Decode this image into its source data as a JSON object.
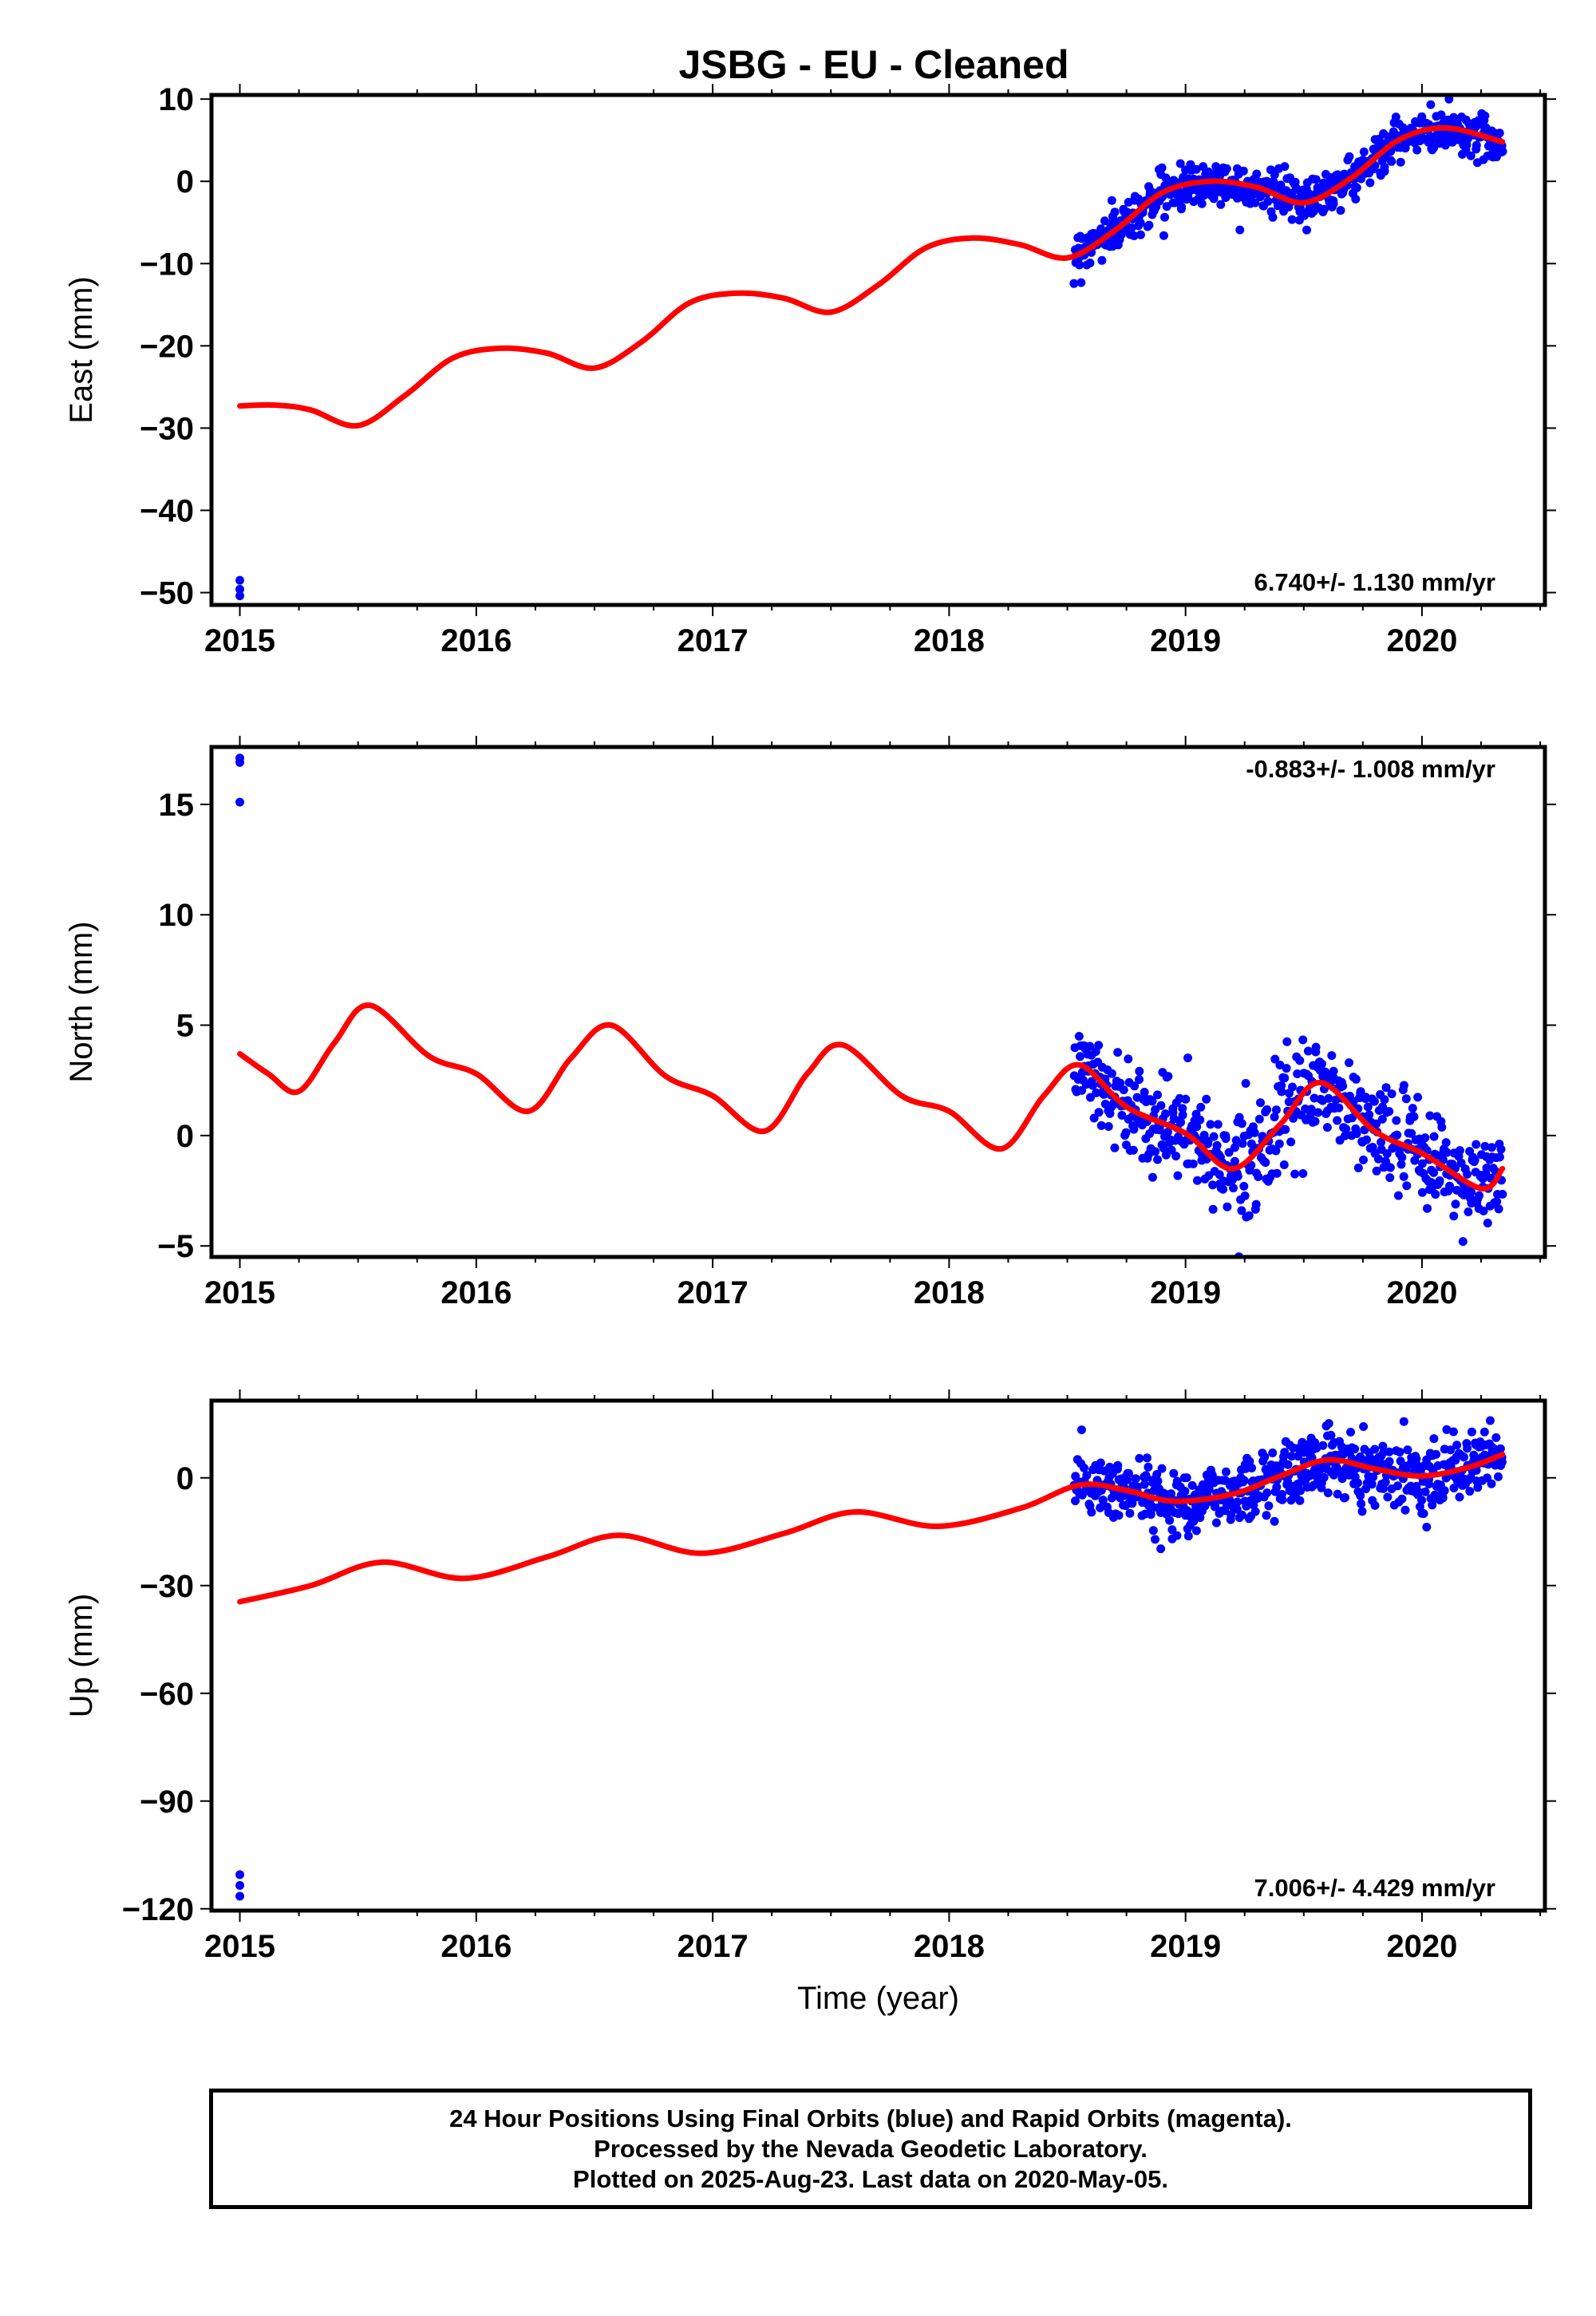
{
  "chart_data": [
    {
      "type": "scatter",
      "title": "JSBG  - EU - Cleaned",
      "xlabel": "",
      "ylabel": "East (mm)",
      "xlim": [
        2014.88,
        2020.52
      ],
      "ylim": [
        -51.5,
        10.5
      ],
      "xticks": [
        2015,
        2016,
        2017,
        2018,
        2019,
        2020
      ],
      "yticks": [
        10,
        0,
        -10,
        -20,
        -30,
        -40,
        -50
      ],
      "rate_annotation": "6.740+/- 1.130 mm/yr",
      "rate_position": "bottom-right",
      "series": [
        {
          "type": "scatter",
          "color": "#0000ff",
          "isolated_points": [
            [
              2015.0,
              -48.5
            ],
            [
              2015.0,
              -49.6
            ],
            [
              2015.0,
              -50.4
            ]
          ],
          "dense_points": {
            "x_range": [
              2018.53,
              2020.34
            ],
            "count": 620,
            "scatter_sd": 1.3
          }
        },
        {
          "type": "line",
          "color": "#ff0000",
          "x": [
            2015.0,
            2015.15,
            2015.3,
            2015.5,
            2015.7,
            2015.9,
            2016.1,
            2016.3,
            2016.5,
            2016.7,
            2016.9,
            2017.1,
            2017.3,
            2017.5,
            2017.7,
            2017.9,
            2018.1,
            2018.3,
            2018.5,
            2018.7,
            2018.9,
            2019.1,
            2019.3,
            2019.5,
            2019.7,
            2019.9,
            2020.1,
            2020.34
          ],
          "y": [
            -27.3,
            -27.2,
            -27.8,
            -29.7,
            -26.0,
            -21.5,
            -20.3,
            -20.9,
            -22.7,
            -19.5,
            -14.8,
            -13.6,
            -14.2,
            -15.9,
            -12.6,
            -8.1,
            -6.9,
            -7.7,
            -9.3,
            -6.0,
            -1.4,
            0.0,
            -0.7,
            -2.6,
            0.4,
            5.0,
            6.5,
            4.8
          ]
        }
      ]
    },
    {
      "type": "scatter",
      "title": "",
      "xlabel": "",
      "ylabel": "North (mm)",
      "xlim": [
        2014.88,
        2020.52
      ],
      "ylim": [
        -5.5,
        17.6
      ],
      "xticks": [
        2015,
        2016,
        2017,
        2018,
        2019,
        2020
      ],
      "yticks": [
        15,
        10,
        5,
        0,
        -5
      ],
      "rate_annotation": "-0.883+/- 1.008 mm/yr",
      "rate_position": "top-right",
      "series": [
        {
          "type": "scatter",
          "color": "#0000ff",
          "isolated_points": [
            [
              2015.0,
              17.1
            ],
            [
              2015.0,
              16.9
            ],
            [
              2015.0,
              15.1
            ]
          ],
          "dense_points": {
            "x_range": [
              2018.53,
              2020.34
            ],
            "count": 560,
            "scatter_sd": 1.1
          }
        },
        {
          "type": "line",
          "color": "#ff0000",
          "x": [
            2015.0,
            2015.12,
            2015.25,
            2015.4,
            2015.55,
            2015.8,
            2016.0,
            2016.22,
            2016.4,
            2016.57,
            2016.8,
            2017.0,
            2017.22,
            2017.4,
            2017.55,
            2017.8,
            2018.0,
            2018.22,
            2018.4,
            2018.55,
            2018.75,
            2019.0,
            2019.2,
            2019.4,
            2019.57,
            2019.8,
            2020.0,
            2020.25,
            2020.34
          ],
          "y": [
            3.7,
            2.8,
            2.0,
            4.2,
            5.9,
            3.6,
            2.8,
            1.1,
            3.5,
            5.0,
            2.7,
            1.8,
            0.2,
            2.8,
            4.1,
            1.8,
            1.1,
            -0.6,
            1.8,
            3.2,
            1.3,
            0.1,
            -1.5,
            0.5,
            2.4,
            0.2,
            -0.8,
            -2.4,
            -1.5
          ]
        }
      ]
    },
    {
      "type": "scatter",
      "title": "",
      "xlabel": "Time (year)",
      "ylabel": "Up (mm)",
      "xlim": [
        2014.88,
        2020.52
      ],
      "ylim": [
        -120.5,
        21.5
      ],
      "xticks": [
        2015,
        2016,
        2017,
        2018,
        2019,
        2020
      ],
      "yticks": [
        0,
        -30,
        -60,
        -90,
        -120
      ],
      "rate_annotation": "7.006+/- 4.429 mm/yr",
      "rate_position": "bottom-right",
      "series": [
        {
          "type": "scatter",
          "color": "#0000ff",
          "isolated_points": [
            [
              2015.0,
              -110.5
            ],
            [
              2015.0,
              -113.5
            ],
            [
              2015.0,
              -116.5
            ]
          ],
          "dense_points": {
            "x_range": [
              2018.53,
              2020.34
            ],
            "count": 620,
            "scatter_sd": 4.5
          }
        },
        {
          "type": "line",
          "color": "#ff0000",
          "x": [
            2015.0,
            2015.3,
            2015.6,
            2015.95,
            2016.3,
            2016.6,
            2016.95,
            2017.3,
            2017.6,
            2017.95,
            2018.3,
            2018.55,
            2018.75,
            2018.95,
            2019.2,
            2019.4,
            2019.6,
            2019.8,
            2020.0,
            2020.2,
            2020.34
          ],
          "y": [
            -34.5,
            -30.0,
            -23.5,
            -28.0,
            -22.0,
            -16.0,
            -21.0,
            -15.5,
            -9.5,
            -13.5,
            -8.5,
            -2.0,
            -3.5,
            -6.5,
            -4.5,
            0.5,
            5.0,
            2.5,
            0.5,
            3.0,
            6.5
          ]
        }
      ]
    }
  ],
  "footer": {
    "line1": "24 Hour Positions Using Final Orbits (blue) and Rapid Orbits (magenta).",
    "line2": "Processed by the Nevada Geodetic Laboratory.",
    "line3": "Plotted on 2025-Aug-23. Last data on 2020-May-05."
  }
}
